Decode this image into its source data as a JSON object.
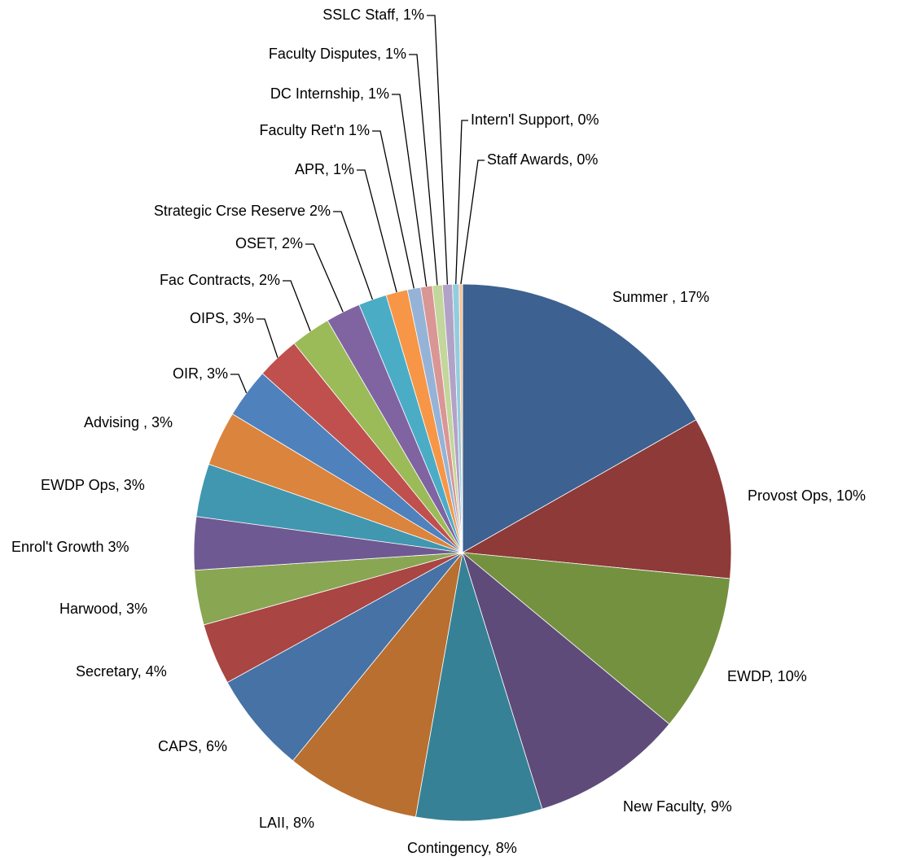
{
  "chart_data": {
    "type": "pie",
    "values": [
      16.8,
      9.8,
      9.5,
      9.2,
      7.6,
      8.1,
      6.1,
      3.7,
      3.3,
      3.2,
      3.2,
      3.3,
      3.0,
      2.6,
      2.4,
      2.1,
      1.7,
      1.3,
      0.8,
      0.7,
      0.6,
      0.6,
      0.4,
      0.2
    ],
    "value_labels": [
      "Summer , 17%",
      "Provost Ops, 10%",
      "EWDP, 10%",
      "New Faculty, 9%",
      "Contingency, 8%",
      "LAII, 8%",
      "CAPS, 6%",
      "Secretary, 4%",
      "Harwood, 3%",
      "Enrol't Growth 3%",
      "EWDP Ops, 3%",
      "Advising , 3%",
      "OIR, 3%",
      "OIPS, 3%",
      "Fac Contracts, 2%",
      "OSET, 2%",
      "Strategic Crse Reserve 2%",
      "APR, 1%",
      "Faculty Ret'n 1%",
      "DC Internship, 1%",
      "Faculty Disputes, 1%",
      "SSLC Staff, 1%",
      "Intern'l Support, 0%",
      "Staff Awards, 0%"
    ],
    "colors": [
      "#3D6190",
      "#8E3A38",
      "#74913F",
      "#5F4B7A",
      "#378197",
      "#B86F30",
      "#4672A6",
      "#A94542",
      "#89A652",
      "#6F5992",
      "#4197AF",
      "#DB843D",
      "#4F81BD",
      "#C0504D",
      "#9BBB59",
      "#8064A2",
      "#4BACC6",
      "#F79646",
      "#95B3D7",
      "#D99694",
      "#C3D69B",
      "#B3A2C7",
      "#93CDDD",
      "#FAC090"
    ]
  }
}
